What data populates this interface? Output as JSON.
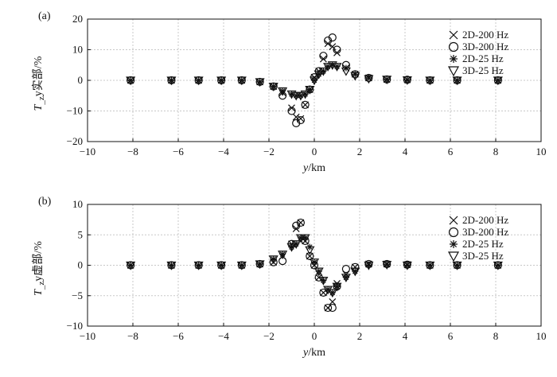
{
  "chart_data": [
    {
      "type": "scatter",
      "panel": "(a)",
      "xlabel": "y/km",
      "ylabel": "T_zy实部/%",
      "xlim": [
        -10,
        10
      ],
      "ylim": [
        -20,
        20
      ],
      "xticks": [
        -10,
        -8,
        -6,
        -4,
        -2,
        0,
        2,
        4,
        6,
        8,
        10
      ],
      "yticks": [
        -20,
        -10,
        0,
        10,
        20
      ],
      "grid": true,
      "legend_position": "top-right",
      "series": [
        {
          "name": "2D-200 Hz",
          "marker": "x",
          "x": [
            -8.1,
            -6.3,
            -5.1,
            -4.1,
            -3.2,
            -2.4,
            -1.8,
            -1.4,
            -1.0,
            -0.8,
            -0.6,
            -0.4,
            -0.2,
            0.0,
            0.2,
            0.4,
            0.6,
            0.8,
            1.0,
            1.4,
            1.8,
            2.4,
            3.2,
            4.1,
            5.1,
            6.3,
            8.1
          ],
          "y": [
            0,
            0,
            0,
            0,
            0,
            -0.5,
            -2,
            -4,
            -9,
            -12,
            -12.5,
            -8,
            -3,
            1,
            3,
            7,
            12,
            11,
            9,
            4,
            2,
            0.8,
            0.3,
            0.2,
            0,
            0,
            0
          ]
        },
        {
          "name": "3D-200 Hz",
          "marker": "o",
          "x": [
            -8.1,
            -6.3,
            -5.1,
            -4.1,
            -3.2,
            -2.4,
            -1.8,
            -1.4,
            -1.0,
            -0.8,
            -0.6,
            -0.4,
            -0.2,
            0.0,
            0.2,
            0.4,
            0.6,
            0.8,
            1.0,
            1.4,
            1.8,
            2.4,
            3.2,
            4.1,
            5.1,
            6.3,
            8.1
          ],
          "y": [
            0,
            0,
            0,
            0,
            0,
            -0.5,
            -2,
            -5,
            -10,
            -14,
            -13,
            -8,
            -3,
            1,
            3,
            8,
            13,
            14,
            10,
            5,
            2,
            0.8,
            0.3,
            0.2,
            0,
            0,
            0
          ]
        },
        {
          "name": "2D-25 Hz",
          "marker": "asterisk",
          "x": [
            -8.1,
            -6.3,
            -5.1,
            -4.1,
            -3.2,
            -2.4,
            -1.8,
            -1.4,
            -1.0,
            -0.8,
            -0.6,
            -0.4,
            -0.2,
            0.0,
            0.2,
            0.4,
            0.6,
            0.8,
            1.0,
            1.4,
            1.8,
            2.4,
            3.2,
            4.1,
            5.1,
            6.3,
            8.1
          ],
          "y": [
            0,
            0,
            0,
            0,
            0,
            -0.5,
            -2,
            -3.5,
            -4.5,
            -5,
            -5,
            -4.5,
            -3,
            0,
            2,
            3,
            4.5,
            5,
            4.5,
            4,
            2,
            1,
            0.3,
            0.1,
            0,
            0,
            0
          ]
        },
        {
          "name": "3D-25 Hz",
          "marker": "triangle-down",
          "x": [
            -8.1,
            -6.3,
            -5.1,
            -4.1,
            -3.2,
            -2.4,
            -1.8,
            -1.4,
            -1.0,
            -0.8,
            -0.6,
            -0.4,
            -0.2,
            0.0,
            0.2,
            0.4,
            0.6,
            0.8,
            1.0,
            1.4,
            1.8,
            2.4,
            3.2,
            4.1,
            5.1,
            6.3,
            8.1
          ],
          "y": [
            0,
            0,
            0,
            0,
            0,
            -0.5,
            -2,
            -3.5,
            -4.5,
            -5,
            -5,
            -4.5,
            -3,
            0,
            2,
            3,
            4.5,
            5,
            4.5,
            3,
            1.5,
            0.5,
            0.3,
            0.1,
            0,
            0,
            0
          ]
        }
      ]
    },
    {
      "type": "scatter",
      "panel": "(b)",
      "xlabel": "y/km",
      "ylabel": "T_zy虚部/%",
      "xlim": [
        -10,
        10
      ],
      "ylim": [
        -10,
        10
      ],
      "xticks": [
        -10,
        -8,
        -6,
        -4,
        -2,
        0,
        2,
        4,
        6,
        8,
        10
      ],
      "yticks": [
        -10,
        -5,
        0,
        5,
        10
      ],
      "grid": true,
      "legend_position": "top-right",
      "series": [
        {
          "name": "2D-200 Hz",
          "marker": "x",
          "x": [
            -8.1,
            -6.3,
            -5.1,
            -4.1,
            -3.2,
            -2.4,
            -1.8,
            -1.4,
            -1.0,
            -0.8,
            -0.6,
            -0.4,
            -0.2,
            0.0,
            0.2,
            0.4,
            0.6,
            0.8,
            1.0,
            1.4,
            1.8,
            2.4,
            3.2,
            4.1,
            5.1,
            6.3,
            8.1
          ],
          "y": [
            0,
            0,
            0,
            0,
            0,
            0.2,
            0.5,
            1.5,
            3.5,
            6,
            7,
            4,
            1.5,
            0,
            -2,
            -4.5,
            -7,
            -6,
            -3,
            -1.5,
            -0.3,
            0.2,
            0.2,
            0.1,
            0,
            0,
            0
          ]
        },
        {
          "name": "3D-200 Hz",
          "marker": "o",
          "x": [
            -8.1,
            -6.3,
            -5.1,
            -4.1,
            -3.2,
            -2.4,
            -1.8,
            -1.4,
            -1.0,
            -0.8,
            -0.6,
            -0.4,
            -0.2,
            0.0,
            0.2,
            0.4,
            0.6,
            0.8,
            1.0,
            1.4,
            1.8,
            2.4,
            3.2,
            4.1,
            5.1,
            6.3,
            8.1
          ],
          "y": [
            0,
            0,
            0,
            0,
            0,
            0.2,
            0.5,
            0.7,
            3.5,
            6.5,
            7,
            4,
            1.5,
            0,
            -2,
            -4.5,
            -7,
            -7,
            -3.5,
            -0.6,
            -0.3,
            0.2,
            0.2,
            0.1,
            0,
            0,
            0
          ]
        },
        {
          "name": "2D-25 Hz",
          "marker": "asterisk",
          "x": [
            -8.1,
            -6.3,
            -5.1,
            -4.1,
            -3.2,
            -2.4,
            -1.8,
            -1.4,
            -1.0,
            -0.8,
            -0.6,
            -0.4,
            -0.2,
            0.0,
            0.2,
            0.4,
            0.6,
            0.8,
            1.0,
            1.4,
            1.8,
            2.4,
            3.2,
            4.1,
            5.1,
            6.3,
            8.1
          ],
          "y": [
            0,
            0,
            0,
            0,
            0,
            0.2,
            1,
            1.8,
            3,
            3.5,
            4.5,
            4.5,
            3,
            0.5,
            -1,
            -2.5,
            -4,
            -4.5,
            -3.5,
            -2,
            -1,
            0,
            0.1,
            0,
            0,
            0,
            0
          ]
        },
        {
          "name": "3D-25 Hz",
          "marker": "triangle-down",
          "x": [
            -8.1,
            -6.3,
            -5.1,
            -4.1,
            -3.2,
            -2.4,
            -1.8,
            -1.4,
            -1.0,
            -0.8,
            -0.6,
            -0.4,
            -0.2,
            0.0,
            0.2,
            0.4,
            0.6,
            0.8,
            1.0,
            1.4,
            1.8,
            2.4,
            3.2,
            4.1,
            5.1,
            6.3,
            8.1
          ],
          "y": [
            0,
            0,
            0,
            0,
            0,
            0.2,
            1,
            1.8,
            3,
            3.5,
            4.5,
            4.5,
            2.5,
            0.5,
            -1,
            -2.5,
            -4,
            -4.5,
            -3.5,
            -2,
            -1,
            0,
            0.1,
            0,
            0,
            0,
            0
          ]
        }
      ]
    }
  ]
}
